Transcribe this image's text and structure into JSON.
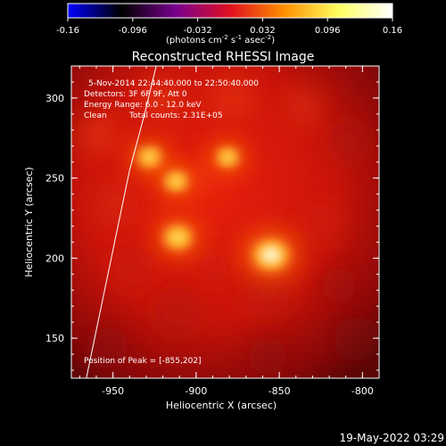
{
  "colorbar": {
    "ticks": [
      "-0.16",
      "-0.096",
      "-0.032",
      "0.032",
      "0.096",
      "0.16"
    ],
    "tick_values": [
      -0.16,
      -0.096,
      -0.032,
      0.032,
      0.096,
      0.16
    ],
    "unit_parts": {
      "prefix": "(photons cm",
      "sup1": "-2",
      "mid1": " s",
      "sup2": "-1",
      "mid2": " asec",
      "sup3": "-2",
      "suffix": ")"
    },
    "range": [
      -0.16,
      0.16
    ],
    "colors": [
      "#0000ff",
      "#000000",
      "#7a0090",
      "#e01020",
      "#ff9000",
      "#ffff60",
      "#ffffff"
    ]
  },
  "chart_data": {
    "type": "heatmap",
    "title": "Reconstructed RHESSI Image",
    "xlabel": "Heliocentric X (arcsec)",
    "ylabel": "Heliocentric Y (arcsec)",
    "xlim": [
      -975,
      -790
    ],
    "ylim": [
      125,
      320
    ],
    "x_ticks": [
      "-950",
      "-900",
      "-850",
      "-800"
    ],
    "x_tick_values": [
      -950,
      -900,
      -850,
      -800
    ],
    "y_ticks": [
      "150",
      "200",
      "250",
      "300"
    ],
    "y_tick_values": [
      150,
      200,
      250,
      300
    ],
    "sources": [
      {
        "x": -855,
        "y": 202,
        "value": 0.16
      },
      {
        "x": -911,
        "y": 213,
        "value": 0.115
      },
      {
        "x": -928,
        "y": 263,
        "value": 0.095
      },
      {
        "x": -912,
        "y": 248,
        "value": 0.09
      },
      {
        "x": -881,
        "y": 263,
        "value": 0.085
      }
    ],
    "limb_curve": [
      [
        -966,
        125
      ],
      [
        -958,
        165
      ],
      [
        -949,
        210
      ],
      [
        -940,
        255
      ],
      [
        -931,
        290
      ],
      [
        -924,
        320
      ]
    ],
    "annotations": [
      "5-Nov-2014 22:44:40.000 to 22:50:40.000",
      "Detectors: 3F 6F 9F, Att 0",
      "Energy Range: 6.0 - 12.0 keV",
      "Clean",
      "Total counts: 2.31E+05"
    ],
    "peak_label": "Position of Peak = [-855,202]",
    "peak": [
      -855,
      202
    ]
  },
  "timestamp": "19-May-2022 03:29"
}
